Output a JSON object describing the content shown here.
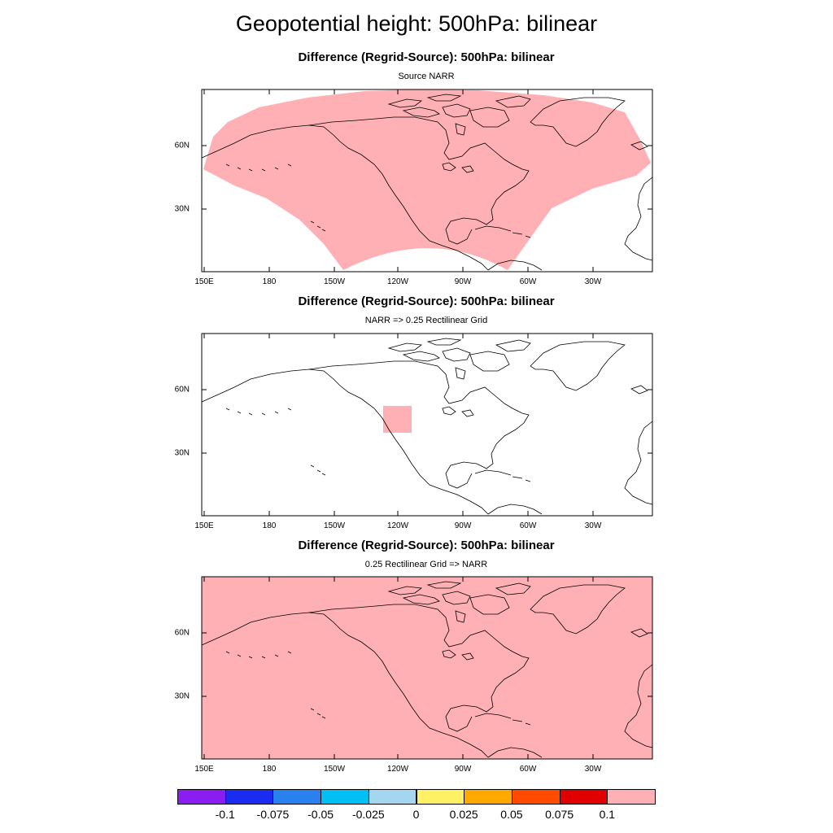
{
  "title": "Geopotential height: 500hPa: bilinear",
  "panels": [
    {
      "title": "Difference (Regrid-Source): 500hPa: bilinear",
      "subtitle": "Source NARR",
      "fill": "narr-domain"
    },
    {
      "title": "Difference (Regrid-Source): 500hPa: bilinear",
      "subtitle": "NARR => 0.25 Rectilinear Grid",
      "fill": "small-box"
    },
    {
      "title": "Difference (Regrid-Source): 500hPa: bilinear",
      "subtitle": "0.25 Rectilinear Grid => NARR",
      "fill": "full"
    }
  ],
  "axes": {
    "x_ticks": [
      "150E",
      "180",
      "150W",
      "120W",
      "90W",
      "60W",
      "30W"
    ],
    "y_ticks": [
      "60N",
      "30N"
    ]
  },
  "colorbar": {
    "colors": [
      "#8a1ef0",
      "#1a2cf0",
      "#2b80ef",
      "#00bff2",
      "#a5d6ef",
      "#fff066",
      "#ffa800",
      "#ff4a00",
      "#e00000",
      "#ffb0b4"
    ],
    "labels": [
      "-0.1",
      "-0.075",
      "-0.05",
      "-0.025",
      "0",
      "0.025",
      "0.05",
      "0.075",
      "0.1"
    ]
  },
  "colors": {
    "fill_pink": "#ffb0b4",
    "coast": "#000000"
  }
}
